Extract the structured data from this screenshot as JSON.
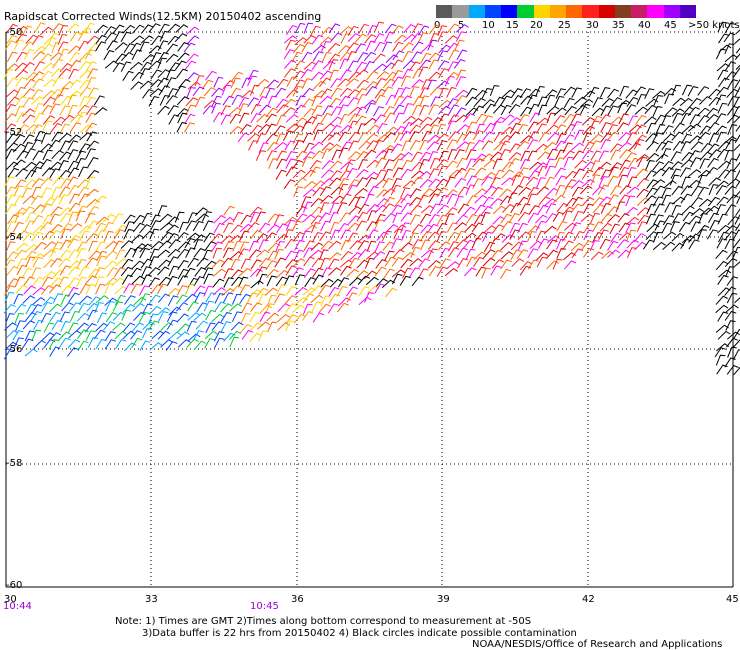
{
  "header": {
    "title": "Rapidscat Corrected Winds(12.5KM) 20150402 ascending"
  },
  "legend": {
    "colors": [
      "#5a5a5a",
      "#9a9a9a",
      "#00a8ff",
      "#0044ff",
      "#0000ff",
      "#00cc33",
      "#ffd500",
      "#ffa500",
      "#ff6600",
      "#ff2020",
      "#d60000",
      "#804020",
      "#c81e64",
      "#ff00ff",
      "#a000ff",
      "#5000c0"
    ],
    "labels": [
      "0",
      "5",
      "10",
      "15",
      "20",
      "25",
      "30",
      "35",
      "40",
      "45",
      ">50 knots"
    ]
  },
  "map": {
    "lat_labels": [
      "-50",
      "-52",
      "-54",
      "-56",
      "-58",
      "-60"
    ],
    "lon_labels": [
      "30",
      "33",
      "36",
      "39",
      "42",
      "45"
    ],
    "time_labels": [
      "10:44",
      "10:45"
    ]
  },
  "notes": {
    "line1": "Note: 1) Times are GMT 2)Times along bottom correspond to measurement at -50S",
    "line2": "3)Data buffer is 22 hrs from 20150402 4) Black circles indicate possible contamination",
    "credit": "NOAA/NESDIS/Office of Research and Applications"
  }
}
